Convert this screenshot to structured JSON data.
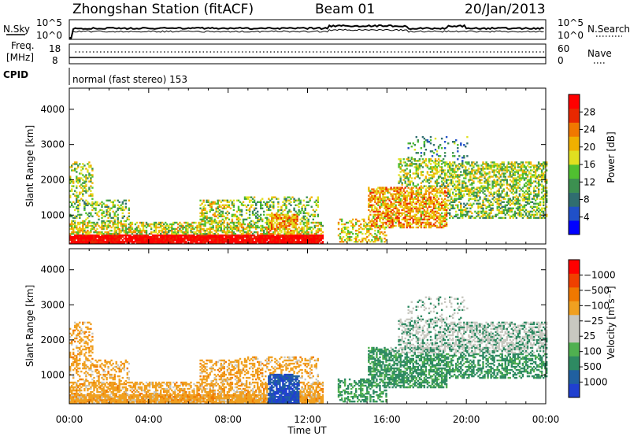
{
  "header": {
    "station": "Zhongshan Station (fitACF)",
    "beam": "Beam 01",
    "date": "20/Jan/2013"
  },
  "panels": {
    "nsky": {
      "left_label": "N.Sky",
      "right_label": "N.Search",
      "ytop": "10^5",
      "ybot": "10^0"
    },
    "freq": {
      "left_label_1": "Freq.",
      "left_label_2": "[MHz]",
      "ytop": "18",
      "ybot": "8",
      "right_label": "Nave",
      "rtop": "60",
      "rbot": "0"
    },
    "cpid": {
      "label": "CPID",
      "mode": "normal (fast stereo) 153"
    }
  },
  "chart_data": [
    {
      "type": "heatmap",
      "name": "power",
      "ylabel": "Slant Range [km]",
      "ylim": [
        180,
        4600
      ],
      "yticks": [
        1000,
        2000,
        3000,
        4000
      ],
      "xlim": [
        0,
        24
      ],
      "xticks": [
        "00:00",
        "04:00",
        "08:00",
        "12:00",
        "16:00",
        "20:00",
        "00:00"
      ],
      "colorbar": {
        "label": "Power [dB]",
        "ticks": [
          "4",
          "8",
          "12",
          "16",
          "20",
          "24",
          "28"
        ],
        "colors": [
          "#0000ff",
          "#2050c8",
          "#306e70",
          "#3c9050",
          "#50c030",
          "#e0e020",
          "#f0b000",
          "#f07800",
          "#e82800",
          "#ff0000"
        ]
      }
    },
    {
      "type": "heatmap",
      "name": "velocity",
      "ylabel": "Slant Range [km]",
      "xlabel": "Time UT",
      "ylim": [
        180,
        4600
      ],
      "yticks": [
        1000,
        2000,
        3000,
        4000
      ],
      "xlim": [
        0,
        24
      ],
      "xticks": [
        "00:00",
        "04:00",
        "08:00",
        "12:00",
        "16:00",
        "20:00",
        "00:00"
      ],
      "colorbar": {
        "label": "Velocity [m s⁻¹]",
        "ticks": [
          "1000",
          "500",
          "100",
          "25",
          "−25",
          "−100",
          "−500",
          "−1000"
        ],
        "colors": [
          "#2040d0",
          "#2060a0",
          "#2e8a62",
          "#50b050",
          "#c8c8c0",
          "#c8c8c0",
          "#f0a020",
          "#f07800",
          "#f04000",
          "#ff0000"
        ]
      }
    }
  ]
}
